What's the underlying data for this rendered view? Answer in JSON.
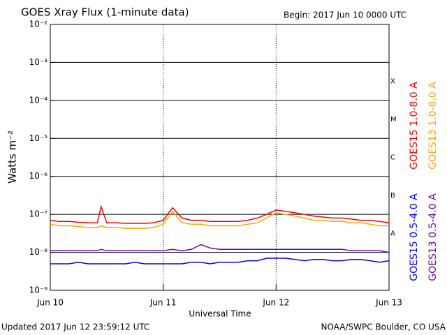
{
  "chart_data": {
    "type": "line",
    "title": "GOES Xray Flux (1-minute data)",
    "subtitle": "Begin:  2017 Jun 10 0000 UTC",
    "ylabel": "Watts m⁻²",
    "xlabel": "Universal Time",
    "footer_left": "Updated 2017 Jun 12 23:59:12 UTC",
    "footer_right": "NOAA/SWPC Boulder, CO USA",
    "log_scale": true,
    "grid": true,
    "ylim": [
      1e-09,
      0.01
    ],
    "yticks": [
      {
        "value": 1e-09,
        "label": "10⁻⁹"
      },
      {
        "value": 1e-08,
        "label": "10⁻⁸"
      },
      {
        "value": 1e-07,
        "label": "10⁻⁷"
      },
      {
        "value": 1e-06,
        "label": "10⁻⁶"
      },
      {
        "value": 1e-05,
        "label": "10⁻⁵"
      },
      {
        "value": 0.0001,
        "label": "10⁻⁴"
      },
      {
        "value": 0.001,
        "label": "10⁻³"
      },
      {
        "value": 0.01,
        "label": "10⁻²"
      }
    ],
    "xlim": [
      0,
      72
    ],
    "xticks": [
      {
        "value": 0,
        "label": "Jun 10"
      },
      {
        "value": 24,
        "label": "Jun 11"
      },
      {
        "value": 48,
        "label": "Jun 12"
      },
      {
        "value": 72,
        "label": "Jun 13"
      }
    ],
    "flare_classes": [
      {
        "value": 0.0001,
        "label": "X"
      },
      {
        "value": 1e-05,
        "label": "M"
      },
      {
        "value": 1e-06,
        "label": "C"
      },
      {
        "value": 1e-07,
        "label": "B"
      },
      {
        "value": 1e-08,
        "label": "A"
      }
    ],
    "x": [
      0,
      2,
      4,
      6,
      8,
      10,
      10.8,
      12,
      14,
      16,
      18,
      20,
      22,
      24,
      26,
      28,
      30,
      32,
      34,
      36,
      38,
      40,
      42,
      44,
      46,
      48,
      50,
      52,
      54,
      56,
      58,
      60,
      62,
      64,
      66,
      68,
      70,
      72
    ],
    "series": [
      {
        "name": "GOES15 1.0-8.0 A",
        "color": "#ff0000",
        "values": [
          7e-08,
          6.5e-08,
          6.5e-08,
          6.2e-08,
          6e-08,
          6e-08,
          1.6e-07,
          6e-08,
          6e-08,
          5.8e-08,
          5.8e-08,
          5.8e-08,
          6e-08,
          7e-08,
          1.5e-07,
          8e-08,
          7e-08,
          7e-08,
          6.5e-08,
          6.5e-08,
          6.5e-08,
          6.5e-08,
          7e-08,
          8e-08,
          1e-07,
          1.3e-07,
          1.2e-07,
          1.1e-07,
          1e-07,
          9e-08,
          8.5e-08,
          8e-08,
          8e-08,
          7.5e-08,
          7e-08,
          7e-08,
          6.5e-08,
          6e-08
        ]
      },
      {
        "name": "GOES13 1.0-8.0 A",
        "color": "#ffa500",
        "values": [
          5.5e-08,
          5e-08,
          5e-08,
          4.8e-08,
          4.5e-08,
          4.5e-08,
          5e-08,
          4.5e-08,
          4.5e-08,
          4.3e-08,
          4.3e-08,
          4.3e-08,
          4.5e-08,
          5.5e-08,
          1.2e-07,
          6e-08,
          5.5e-08,
          5.5e-08,
          5e-08,
          5e-08,
          5e-08,
          5e-08,
          5.5e-08,
          6e-08,
          8e-08,
          1.1e-07,
          1e-07,
          9e-08,
          8e-08,
          7e-08,
          7e-08,
          6.5e-08,
          6.5e-08,
          6e-08,
          6e-08,
          5.5e-08,
          5e-08,
          5e-08
        ]
      },
      {
        "name": "GOES15 0.5-4.0 A",
        "color": "#0000ff",
        "values": [
          5e-09,
          5e-09,
          5e-09,
          5.5e-09,
          5e-09,
          5e-09,
          5e-09,
          5e-09,
          5e-09,
          5e-09,
          5.5e-09,
          5e-09,
          5e-09,
          5e-09,
          5e-09,
          5e-09,
          5.5e-09,
          5.5e-09,
          5e-09,
          5.5e-09,
          5.5e-09,
          5.5e-09,
          6e-09,
          6e-09,
          7e-09,
          7e-09,
          7e-09,
          6.5e-09,
          6e-09,
          6.5e-09,
          6.5e-09,
          6e-09,
          6e-09,
          6.5e-09,
          6.5e-09,
          6e-09,
          5.5e-09,
          6e-09
        ]
      },
      {
        "name": "GOES13 0.5-4.0 A",
        "color": "#6a0dad",
        "values": [
          1.1e-08,
          1.1e-08,
          1.1e-08,
          1.1e-08,
          1.1e-08,
          1.1e-08,
          1.2e-08,
          1.1e-08,
          1.1e-08,
          1.1e-08,
          1.1e-08,
          1.1e-08,
          1.1e-08,
          1.1e-08,
          1.2e-08,
          1.1e-08,
          1.2e-08,
          1.6e-08,
          1.3e-08,
          1.2e-08,
          1.2e-08,
          1.2e-08,
          1.2e-08,
          1.2e-08,
          1.2e-08,
          1.2e-08,
          1.2e-08,
          1.2e-08,
          1.2e-08,
          1.2e-08,
          1.2e-08,
          1.2e-08,
          1.2e-08,
          1.1e-08,
          1.1e-08,
          1.1e-08,
          1.1e-08,
          1e-08
        ]
      }
    ]
  }
}
